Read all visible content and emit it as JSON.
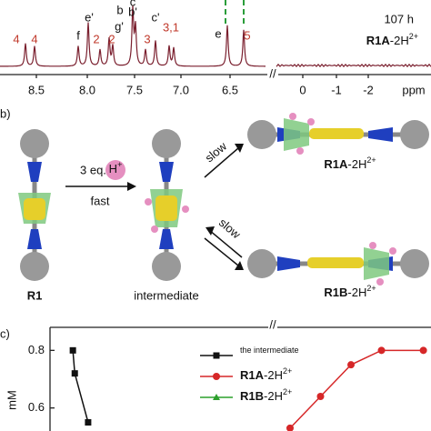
{
  "nmr": {
    "time": "107 h",
    "compound": "R1A-2H2+",
    "peak_labels": [
      "4",
      "4",
      "f",
      "e'",
      "2",
      "b",
      "g'",
      "2",
      "c",
      "b'",
      "3",
      "c'",
      "3,1",
      "e",
      "5"
    ],
    "ticks": [
      "8.5",
      "8.0",
      "7.5",
      "7.0",
      "6.5",
      "0",
      "-1",
      "-2"
    ],
    "unit": "ppm"
  },
  "scheme": {
    "panel": "b)",
    "reagent": "3 eq.",
    "proton": "H+",
    "fast": "fast",
    "slow_up": "slow",
    "slow_down": "slow",
    "start": "R1",
    "middle": "intermediate",
    "product_a": "R1A-2H2+",
    "product_b": "R1B-2H2+"
  },
  "chart_data": {
    "type": "line",
    "panel": "c)",
    "y_label": "mM",
    "xlim": [
      0,
      100
    ],
    "ylim": [
      0.52,
      0.88
    ],
    "yticks": [
      0.8,
      0.6
    ],
    "series": [
      {
        "name": "the intermediate",
        "color": "#111111",
        "marker": "square",
        "x": [
          6,
          6.5,
          10
        ],
        "values": [
          0.8,
          0.72,
          0.55
        ]
      },
      {
        "name": "R1A-2H2+",
        "color": "#d62728",
        "marker": "circle",
        "x": [
          63,
          71,
          79,
          87,
          98
        ],
        "values": [
          0.53,
          0.64,
          0.75,
          0.8,
          0.8
        ]
      },
      {
        "name": "R1B-2H2+",
        "color": "#2ca02c",
        "marker": "triangle",
        "x": [],
        "values": []
      }
    ]
  }
}
